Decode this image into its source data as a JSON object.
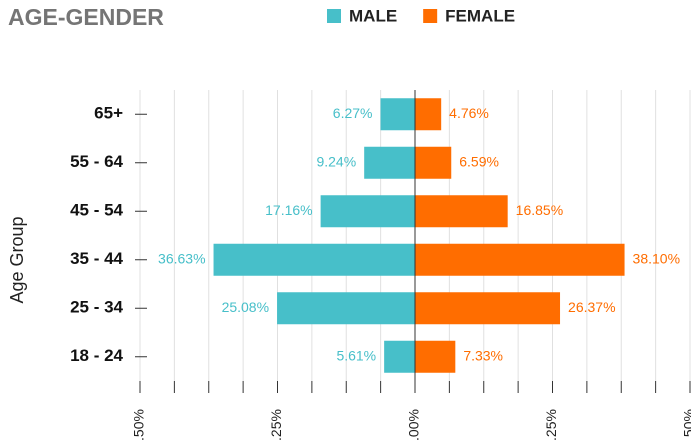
{
  "chart_data": {
    "type": "pyramid",
    "title": "AGE-GENDER",
    "y_label": "Age Group",
    "categories": [
      "65+",
      "55 - 64",
      "45 - 54",
      "35 - 44",
      "25 - 34",
      "18 - 24"
    ],
    "series": [
      {
        "name": "MALE",
        "color": "#47bfc9",
        "side": "left",
        "values": [
          6.27,
          9.24,
          17.16,
          36.63,
          25.08,
          5.61
        ],
        "value_labels": [
          "6.27%",
          "9.24%",
          "17.16%",
          "36.63%",
          "25.08%",
          "5.61%"
        ]
      },
      {
        "name": "FEMALE",
        "color": "#ff6d00",
        "side": "right",
        "values": [
          4.76,
          6.59,
          16.85,
          38.1,
          26.37,
          7.33
        ],
        "value_labels": [
          "4.76%",
          "6.59%",
          "16.85%",
          "38.10%",
          "26.37%",
          "7.33%"
        ]
      }
    ],
    "xlim": [
      -50,
      50
    ],
    "xticks": [
      {
        "value": -50,
        "label": ".50%"
      },
      {
        "value": -25,
        "label": ".25%"
      },
      {
        "value": 0,
        "label": ".00%"
      },
      {
        "value": 25,
        "label": ".25%"
      },
      {
        "value": 50,
        "label": ".50%"
      }
    ],
    "xminor": [
      -43.75,
      -37.5,
      -31.25,
      -18.75,
      -12.5,
      -6.25,
      6.25,
      12.5,
      18.75,
      31.25,
      37.5,
      43.75
    ],
    "grid": true
  }
}
